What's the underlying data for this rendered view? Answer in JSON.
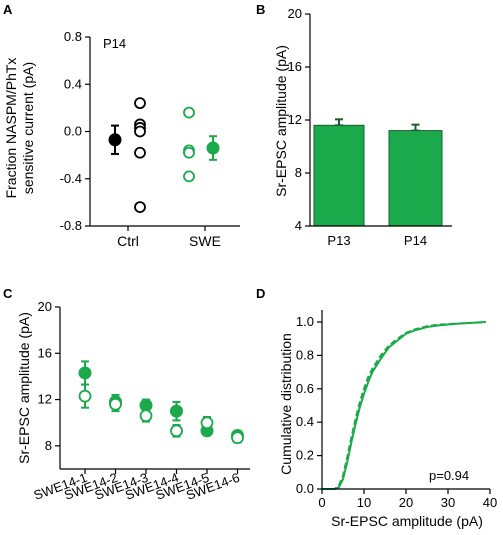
{
  "colors": {
    "green": "#1aa94b",
    "black": "#000000",
    "bar_edge": "#1b5e2e"
  },
  "chart_data": [
    {
      "panel": "A",
      "type": "scatter",
      "annotation": "P14",
      "ylabel_lines": [
        "Fraction NASPM/PhTx",
        "sensitive current (pA)"
      ],
      "ylim": [
        -0.8,
        0.8
      ],
      "yticks": [
        {
          "value": 0.8,
          "label": "0.8"
        },
        {
          "value": 0.4,
          "label": "0.4"
        },
        {
          "value": 0.0,
          "label": "0.0"
        },
        {
          "value": -0.4,
          "label": "-0.4"
        },
        {
          "value": -0.8,
          "label": "-0.8"
        }
      ],
      "categories": [
        "Ctrl",
        "SWE"
      ],
      "series": [
        {
          "group": "Ctrl",
          "color": "#000000",
          "points": [
            0.24,
            0.06,
            0.03,
            0.0,
            -0.18,
            -0.64
          ],
          "mean": -0.07,
          "err": 0.12
        },
        {
          "group": "SWE",
          "color": "#1aa94b",
          "points": [
            0.16,
            -0.16,
            -0.18,
            -0.38
          ],
          "mean": -0.14,
          "err": 0.1
        }
      ]
    },
    {
      "panel": "B",
      "type": "bar",
      "ylabel": "Sr-EPSC amplitude (pA)",
      "ylim": [
        4,
        20
      ],
      "yticks": [
        {
          "value": 20,
          "label": "20"
        },
        {
          "value": 16,
          "label": "16"
        },
        {
          "value": 12,
          "label": "12"
        },
        {
          "value": 8,
          "label": "8"
        },
        {
          "value": 4,
          "label": "4"
        }
      ],
      "categories": [
        "P13",
        "P14"
      ],
      "values": [
        11.6,
        11.2
      ],
      "errors": [
        0.45,
        0.45
      ]
    },
    {
      "panel": "C",
      "type": "scatter",
      "ylabel": "Sr-EPSC amplitude (pA)",
      "ylim": [
        6,
        20
      ],
      "yticks": [
        {
          "value": 20,
          "label": "20"
        },
        {
          "value": 16,
          "label": "16"
        },
        {
          "value": 12,
          "label": "12"
        },
        {
          "value": 8,
          "label": "8"
        }
      ],
      "categories": [
        "SWE14-1",
        "SWE14-2",
        "SWE14-3",
        "SWE14-4",
        "SWE14-5",
        "SWE14-6"
      ],
      "series": [
        {
          "style": "filled",
          "values": [
            14.3,
            11.8,
            11.5,
            11.0,
            9.3,
            8.9
          ],
          "errors": [
            1.0,
            0.6,
            0.5,
            0.8,
            0.4,
            0.4
          ]
        },
        {
          "style": "open",
          "values": [
            12.3,
            11.6,
            10.6,
            9.3,
            10.0,
            8.7
          ],
          "errors": [
            1.0,
            0.6,
            0.5,
            0.5,
            0.5,
            0.4
          ]
        }
      ]
    },
    {
      "panel": "D",
      "type": "line",
      "ylabel": "Cumulative distribution",
      "xlabel": "Sr-EPSC amplitude (pA)",
      "annotation": "p=0.94",
      "xlim": [
        0,
        40
      ],
      "ylim": [
        0,
        1.0
      ],
      "xticks": [
        {
          "value": 0,
          "label": "0"
        },
        {
          "value": 10,
          "label": "10"
        },
        {
          "value": 20,
          "label": "20"
        },
        {
          "value": 30,
          "label": "30"
        },
        {
          "value": 40,
          "label": "40"
        }
      ],
      "yticks": [
        {
          "value": 0.0,
          "label": "0.0"
        },
        {
          "value": 0.2,
          "label": "0.2"
        },
        {
          "value": 0.4,
          "label": "0.4"
        },
        {
          "value": 0.6,
          "label": "0.6"
        },
        {
          "value": 0.8,
          "label": "0.8"
        },
        {
          "value": 1.0,
          "label": "1.0"
        }
      ],
      "series": [
        {
          "style": "solid",
          "x": [
            0,
            3,
            4,
            5,
            6,
            7,
            8,
            9,
            10,
            11,
            12,
            14,
            16,
            18,
            20,
            22,
            25,
            28,
            32,
            36,
            39
          ],
          "y": [
            0,
            0,
            0.01,
            0.06,
            0.16,
            0.28,
            0.39,
            0.49,
            0.57,
            0.64,
            0.7,
            0.78,
            0.85,
            0.89,
            0.93,
            0.95,
            0.97,
            0.98,
            0.99,
            0.995,
            1.0
          ]
        },
        {
          "style": "dashed",
          "x": [
            0,
            3,
            4,
            5,
            6,
            7,
            8,
            9,
            10,
            11,
            12,
            14,
            16,
            18,
            20,
            22,
            25,
            28,
            32,
            36,
            39
          ],
          "y": [
            0,
            0,
            0.02,
            0.08,
            0.19,
            0.31,
            0.42,
            0.52,
            0.6,
            0.67,
            0.72,
            0.8,
            0.86,
            0.9,
            0.935,
            0.955,
            0.975,
            0.985,
            0.99,
            0.995,
            1.0
          ]
        }
      ]
    }
  ]
}
